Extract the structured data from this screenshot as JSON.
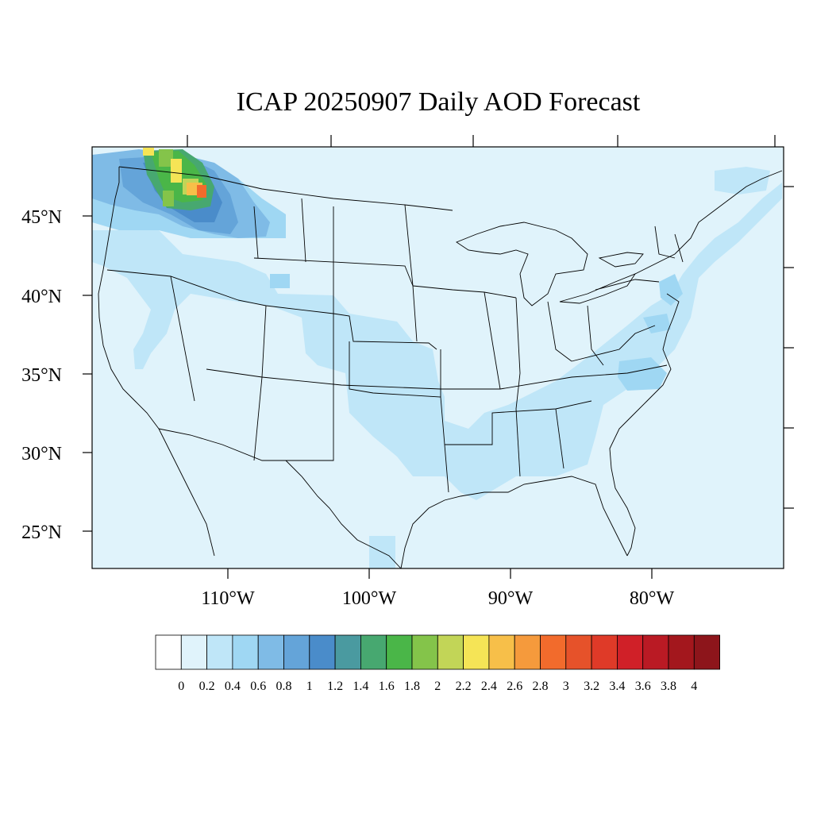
{
  "title": "ICAP 20250907 Daily AOD Forecast",
  "map": {
    "lat_labels": [
      "45°N",
      "40°N",
      "35°N",
      "30°N",
      "25°N"
    ],
    "lon_labels": [
      "110°W",
      "100°W",
      "90°W",
      "80°W"
    ],
    "region": "Continental United States",
    "background_aod_color": "#e0f3fb",
    "plumes": [
      {
        "name": "Pacific Northwest smoke",
        "peak_aod": 2.8,
        "region": "Washington / Idaho / Montana"
      },
      {
        "name": "Southern Plains haze",
        "peak_aod": 0.4,
        "region": "Colorado to Gulf Coast"
      },
      {
        "name": "East Coast haze",
        "peak_aod": 0.6,
        "region": "Carolinas to New England"
      }
    ]
  },
  "colorbar": {
    "labels": [
      "0",
      "0.2",
      "0.4",
      "0.6",
      "0.8",
      "1",
      "1.2",
      "1.4",
      "1.6",
      "1.8",
      "2",
      "2.2",
      "2.4",
      "2.6",
      "2.8",
      "3",
      "3.2",
      "3.4",
      "3.6",
      "3.8",
      "4"
    ],
    "colors": [
      "#ffffff",
      "#e0f3fb",
      "#bfe6f8",
      "#9fd7f3",
      "#7fbbe6",
      "#64a4d9",
      "#4a8cca",
      "#4a9aa0",
      "#47a870",
      "#4ab648",
      "#84c44a",
      "#c2d557",
      "#f5e456",
      "#f7bf49",
      "#f59a3c",
      "#f26b2c",
      "#e6522a",
      "#df3a28",
      "#d02028",
      "#ba1a24",
      "#a3171d",
      "#8d151b"
    ]
  }
}
